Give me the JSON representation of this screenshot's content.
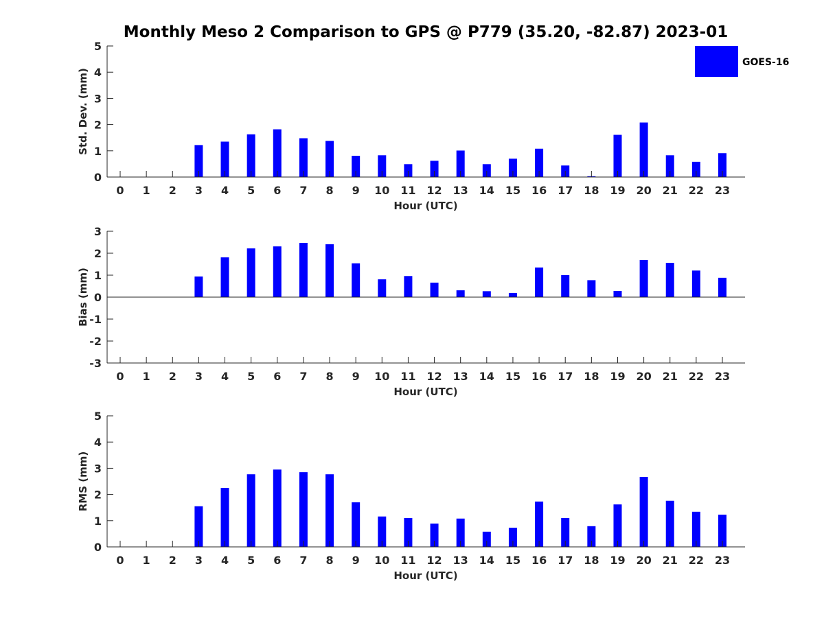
{
  "title": "Monthly Meso 2 Comparison to GPS @ P779 (35.20, -82.87) 2023-01",
  "legend": {
    "label": "GOES-16",
    "color": "#0000ff",
    "placement": "top-right"
  },
  "chart_data": [
    {
      "type": "bar",
      "ylabel": "Std. Dev. (mm)",
      "xlabel": "Hour (UTC)",
      "ylim": [
        0,
        5
      ],
      "yticks": [
        "0",
        "1",
        "2",
        "3",
        "4",
        "5"
      ],
      "categories": [
        "0",
        "1",
        "2",
        "3",
        "4",
        "5",
        "6",
        "7",
        "8",
        "9",
        "10",
        "11",
        "12",
        "13",
        "14",
        "15",
        "16",
        "17",
        "18",
        "19",
        "20",
        "21",
        "22",
        "23"
      ],
      "series": [
        {
          "name": "GOES-16",
          "values": [
            null,
            null,
            null,
            1.22,
            1.35,
            1.63,
            1.82,
            1.48,
            1.38,
            0.81,
            0.83,
            0.49,
            0.62,
            1.01,
            0.49,
            0.7,
            1.08,
            0.44,
            0.03,
            1.61,
            2.08,
            0.83,
            0.58,
            0.91
          ]
        }
      ]
    },
    {
      "type": "bar",
      "ylabel": "Bias (mm)",
      "xlabel": "Hour (UTC)",
      "ylim": [
        -3,
        3
      ],
      "yticks": [
        "-3",
        "-2",
        "-1",
        "0",
        "1",
        "2",
        "3"
      ],
      "categories": [
        "0",
        "1",
        "2",
        "3",
        "4",
        "5",
        "6",
        "7",
        "8",
        "9",
        "10",
        "11",
        "12",
        "13",
        "14",
        "15",
        "16",
        "17",
        "18",
        "19",
        "20",
        "21",
        "22",
        "23"
      ],
      "series": [
        {
          "name": "GOES-16",
          "values": [
            null,
            null,
            null,
            0.94,
            1.81,
            2.22,
            2.31,
            2.47,
            2.41,
            1.54,
            0.81,
            0.96,
            0.66,
            0.31,
            0.27,
            0.19,
            1.35,
            1.0,
            0.77,
            0.28,
            1.69,
            1.56,
            1.21,
            0.88
          ]
        }
      ]
    },
    {
      "type": "bar",
      "ylabel": "RMS (mm)",
      "xlabel": "Hour (UTC)",
      "ylim": [
        0,
        5
      ],
      "yticks": [
        "0",
        "1",
        "2",
        "3",
        "4",
        "5"
      ],
      "categories": [
        "0",
        "1",
        "2",
        "3",
        "4",
        "5",
        "6",
        "7",
        "8",
        "9",
        "10",
        "11",
        "12",
        "13",
        "14",
        "15",
        "16",
        "17",
        "18",
        "19",
        "20",
        "21",
        "22",
        "23"
      ],
      "series": [
        {
          "name": "GOES-16",
          "values": [
            null,
            null,
            null,
            1.55,
            2.25,
            2.77,
            2.95,
            2.85,
            2.77,
            1.7,
            1.16,
            1.1,
            0.89,
            1.08,
            0.58,
            0.73,
            1.73,
            1.1,
            0.79,
            1.62,
            2.67,
            1.76,
            1.34,
            1.23
          ]
        }
      ]
    }
  ]
}
